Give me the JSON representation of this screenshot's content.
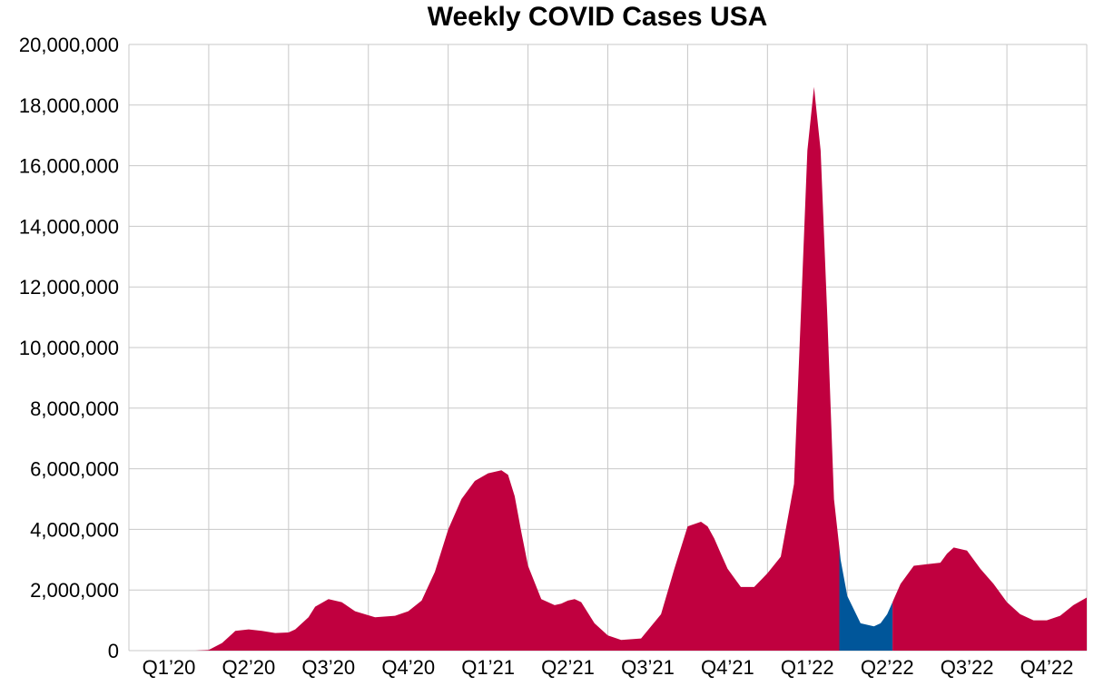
{
  "chart_data": {
    "type": "area",
    "title": "Weekly COVID Cases USA",
    "xlabel": "",
    "ylabel": "",
    "ylim": [
      0,
      20000000
    ],
    "y_ticks": [
      0,
      2000000,
      4000000,
      6000000,
      8000000,
      10000000,
      12000000,
      14000000,
      16000000,
      18000000,
      20000000
    ],
    "y_tick_labels": [
      "0",
      "2,000,000",
      "4,000,000",
      "6,000,000",
      "8,000,000",
      "10,000,000",
      "12,000,000",
      "14,000,000",
      "16,000,000",
      "18,000,000",
      "20,000,000"
    ],
    "x_range": [
      0,
      36
    ],
    "x_tick_labels": [
      "Q1’20",
      "Q2’20",
      "Q3’20",
      "Q4’20",
      "Q1’21",
      "Q2’21",
      "Q3’21",
      "Q4’21",
      "Q1’22",
      "Q2’22",
      "Q3’22",
      "Q4’22"
    ],
    "grid": true,
    "legend": "none",
    "highlight_range": [
      26.7,
      28.7
    ],
    "colors": {
      "area": "#c0003f",
      "highlight": "#00569a",
      "grid": "#c8c8c8"
    },
    "series": [
      {
        "x": [
          0.5,
          1.5,
          2.5,
          3.0,
          3.5,
          3.75,
          4.0,
          4.5,
          5.0,
          5.5,
          6.0,
          6.25,
          6.75,
          7.0,
          7.5,
          8.0,
          8.5,
          9.25,
          10.0,
          10.5,
          11.0,
          11.5,
          12.0,
          12.5,
          13.0,
          13.5,
          14.0,
          14.25,
          14.5,
          14.75,
          15.0,
          15.5,
          16.0,
          16.25,
          16.5,
          16.75,
          17.0,
          17.25,
          17.5,
          18.0,
          18.5,
          19.25,
          20.0,
          20.5,
          21.0,
          21.5,
          21.75,
          22.0,
          22.25,
          22.5,
          23.0,
          23.5,
          24.0,
          24.5,
          25.0,
          25.25,
          25.5,
          25.75,
          26.0,
          26.25,
          26.5,
          26.75,
          27.0,
          27.5,
          28.0,
          28.25,
          28.5,
          28.75,
          29.0,
          29.5,
          30.0,
          30.5,
          30.75,
          31.0,
          31.5,
          32.0,
          32.5,
          33.0,
          33.5,
          34.0,
          34.5,
          35.0,
          35.5,
          36.0
        ],
        "y": [
          0,
          0,
          0,
          20000,
          250000,
          450000,
          650000,
          700000,
          650000,
          580000,
          600000,
          700000,
          1100000,
          1450000,
          1700000,
          1600000,
          1300000,
          1100000,
          1150000,
          1300000,
          1650000,
          2600000,
          4000000,
          5000000,
          5600000,
          5850000,
          5950000,
          5800000,
          5100000,
          3900000,
          2800000,
          1700000,
          1500000,
          1550000,
          1650000,
          1700000,
          1600000,
          1250000,
          900000,
          500000,
          350000,
          400000,
          1200000,
          2700000,
          4100000,
          4250000,
          4100000,
          3700000,
          3200000,
          2700000,
          2100000,
          2100000,
          2550000,
          3100000,
          5500000,
          11000000,
          16500000,
          18600000,
          16500000,
          11000000,
          5000000,
          3000000,
          1800000,
          900000,
          800000,
          900000,
          1200000,
          1700000,
          2200000,
          2800000,
          2850000,
          2900000,
          3200000,
          3400000,
          3300000,
          2700000,
          2200000,
          1600000,
          1200000,
          1000000,
          1000000,
          1150000,
          1500000,
          1750000
        ]
      }
    ]
  }
}
